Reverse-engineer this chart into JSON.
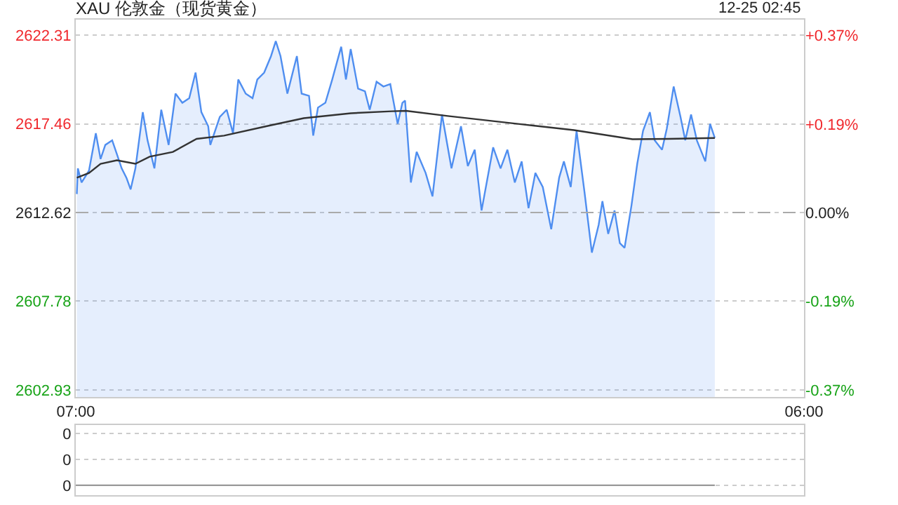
{
  "chart_data": [
    {
      "type": "line",
      "title": "XAU 伦敦金（现货黄金）",
      "annotations": [
        "12-25 02:45"
      ],
      "series": [
        {
          "type": "area",
          "color": "#4f8ef0",
          "x": [
            "--12-24T07:02",
            "--12-24T07:04",
            "--12-24T07:11",
            "--12-24T07:25",
            "--12-24T07:38",
            "--12-24T07:47",
            "--12-24T07:56",
            "--12-24T08:09",
            "--12-24T08:18",
            "--12-24T08:27",
            "--12-24T08:36",
            "--12-24T08:44",
            "--12-24T08:53",
            "--12-24T09:07",
            "--12-24T09:16",
            "--12-24T09:29",
            "--12-24T09:42",
            "--12-24T09:56",
            "--12-24T10:09",
            "--12-24T10:22",
            "--12-24T10:35",
            "--12-24T10:47",
            "--12-24T10:58",
            "--12-24T11:11",
            "--12-24T11:15",
            "--12-24T11:33",
            "--12-24T11:46",
            "--12-24T11:58",
            "--12-24T12:08",
            "--12-24T12:22",
            "--12-24T12:35",
            "--12-24T12:44",
            "--12-24T12:57",
            "--12-24T13:10",
            "--12-24T13:19",
            "--12-24T13:28",
            "--12-24T13:41",
            "--12-24T13:59",
            "--12-24T14:08",
            "--12-24T14:22",
            "--12-24T14:30",
            "--12-24T14:39",
            "--12-24T14:53",
            "--12-24T15:06",
            "--12-24T15:23",
            "--12-24T15:32",
            "--12-24T15:41",
            "--12-24T15:55",
            "--12-24T16:08",
            "--12-24T16:17",
            "--12-24T16:30",
            "--12-24T16:43",
            "--12-24T16:56",
            "--12-24T17:10",
            "--12-24T17:19",
            "--12-24T17:24",
            "--12-24T17:35",
            "--12-24T17:46",
            "--12-24T18:03",
            "--12-24T18:16",
            "--12-24T18:34",
            "--12-24T18:52",
            "--12-24T19:10",
            "--12-24T19:23",
            "--12-24T19:36",
            "--12-24T19:49",
            "--12-24T20:11",
            "--12-24T20:25",
            "--12-24T20:38",
            "--12-24T20:52",
            "--12-24T21:05",
            "--12-24T21:18",
            "--12-24T21:31",
            "--12-24T21:45",
            "--12-24T22:01",
            "--12-24T22:16",
            "--12-24T22:25",
            "--12-24T22:38",
            "--12-24T22:49",
            "--12-24T23:04",
            "--12-24T23:18",
            "--12-24T23:31",
            "--12-24T23:38",
            "--12-24T23:49",
            "--12-25T00:01",
            "--12-25T00:11",
            "--12-25T00:20",
            "--12-25T00:33",
            "--12-25T00:44",
            "--12-25T00:55",
            "--12-25T01:08",
            "--12-25T01:17",
            "--12-25T01:31",
            "--12-25T01:40",
            "--12-25T01:53",
            "--12-25T02:06",
            "--12-25T02:15",
            "--12-25T02:26",
            "--12-25T02:37",
            "--12-25T02:53",
            "--12-25T03:02",
            "--12-25T03:11"
          ],
          "values": [
            2613.63,
            2615.03,
            2614.26,
            2614.9,
            2616.95,
            2615.54,
            2616.31,
            2616.56,
            2615.8,
            2615.03,
            2614.52,
            2613.88,
            2615.03,
            2618.1,
            2616.56,
            2615.03,
            2618.23,
            2616.31,
            2619.11,
            2618.61,
            2618.86,
            2620.26,
            2618.1,
            2617.33,
            2616.31,
            2617.84,
            2618.23,
            2616.95,
            2619.88,
            2619.11,
            2618.86,
            2619.88,
            2620.26,
            2621.16,
            2621.98,
            2621.16,
            2619.11,
            2621.16,
            2619.11,
            2618.99,
            2616.82,
            2618.35,
            2618.61,
            2619.88,
            2621.67,
            2619.88,
            2621.54,
            2619.38,
            2619.24,
            2618.23,
            2619.76,
            2619.5,
            2619.63,
            2617.46,
            2618.61,
            2618.73,
            2614.26,
            2615.93,
            2614.78,
            2613.5,
            2617.97,
            2615.03,
            2617.33,
            2615.16,
            2616.05,
            2612.73,
            2616.18,
            2615.03,
            2616.05,
            2614.26,
            2615.41,
            2612.86,
            2614.78,
            2614.01,
            2611.71,
            2614.52,
            2615.41,
            2614.01,
            2617.08,
            2613.75,
            2610.43,
            2611.96,
            2613.24,
            2611.45,
            2612.73,
            2610.95,
            2610.69,
            2612.99,
            2615.28,
            2617.08,
            2618.1,
            2616.56,
            2616.05,
            2617.2,
            2619.5,
            2617.84,
            2616.56,
            2617.97,
            2616.56,
            2615.41,
            2617.46,
            2616.69
          ]
        },
        {
          "type": "line",
          "color": "#333333",
          "x": [
            "--12-24T07:02",
            "--12-24T07:25",
            "--12-24T07:47",
            "--12-24T08:18",
            "--12-24T08:53",
            "--12-24T09:20",
            "--12-24T10:04",
            "--12-24T10:49",
            "--12-24T11:41",
            "--12-24T13:01",
            "--12-24T14:12",
            "--12-24T15:41",
            "--12-24T16:59",
            "--12-24T17:26",
            "--12-24T18:45",
            "--12-24T20:58",
            "--12-24T22:44",
            "--12-25T00:35",
            "--12-25T01:42",
            "--12-25T03:11"
          ],
          "values": [
            2614.52,
            2614.78,
            2615.28,
            2615.47,
            2615.28,
            2615.67,
            2615.93,
            2616.64,
            2616.82,
            2617.33,
            2617.77,
            2618.04,
            2618.15,
            2618.17,
            2617.89,
            2617.46,
            2617.12,
            2616.62,
            2616.64,
            2616.69
          ]
        }
      ],
      "xlim": [
        "--12-24T07:00",
        "--12-25T06:00"
      ],
      "xticks": [
        {
          "value": "--12-24T07:00",
          "label": "07:00"
        },
        {
          "value": "--12-25T06:00",
          "label": "06:00"
        }
      ],
      "ylim": [
        2602.55,
        2623.15
      ],
      "yticks": [
        2602.93,
        2607.78,
        2612.62,
        2617.46,
        2622.31
      ],
      "y2lim": [
        -0.385,
        0.403
      ],
      "y2ticks": [
        {
          "value": -0.371,
          "label": "-0.37%"
        },
        {
          "value": -0.185,
          "label": "-0.19%"
        },
        {
          "value": 0,
          "label": "0.00%"
        },
        {
          "value": 0.185,
          "label": "+0.19%"
        },
        {
          "value": 0.371,
          "label": "+0.37%"
        }
      ],
      "ref_lines": [
        {
          "axis": "y",
          "value": 2612.62,
          "color": "#aaaaaa",
          "line_style": "dashed"
        }
      ],
      "grid": "y",
      "marker": "none",
      "line_style": "solid"
    },
    {
      "type": "line",
      "series": [
        {
          "color": "#999999",
          "x": [
            "--12-24T07:00",
            "--12-25T03:11"
          ],
          "values": [
            0,
            0
          ]
        }
      ],
      "xlim": [
        "--12-24T07:00",
        "--12-25T06:00"
      ],
      "ylim": [
        -0.0019,
        0.0116
      ],
      "yticks": [
        {
          "value": 0,
          "label": "0"
        },
        {
          "value": 0.005,
          "label": "0"
        },
        {
          "value": 0.01,
          "label": "0"
        }
      ],
      "grid": "y",
      "tick_labels": "y",
      "marker": "none",
      "line_style": "solid"
    }
  ]
}
